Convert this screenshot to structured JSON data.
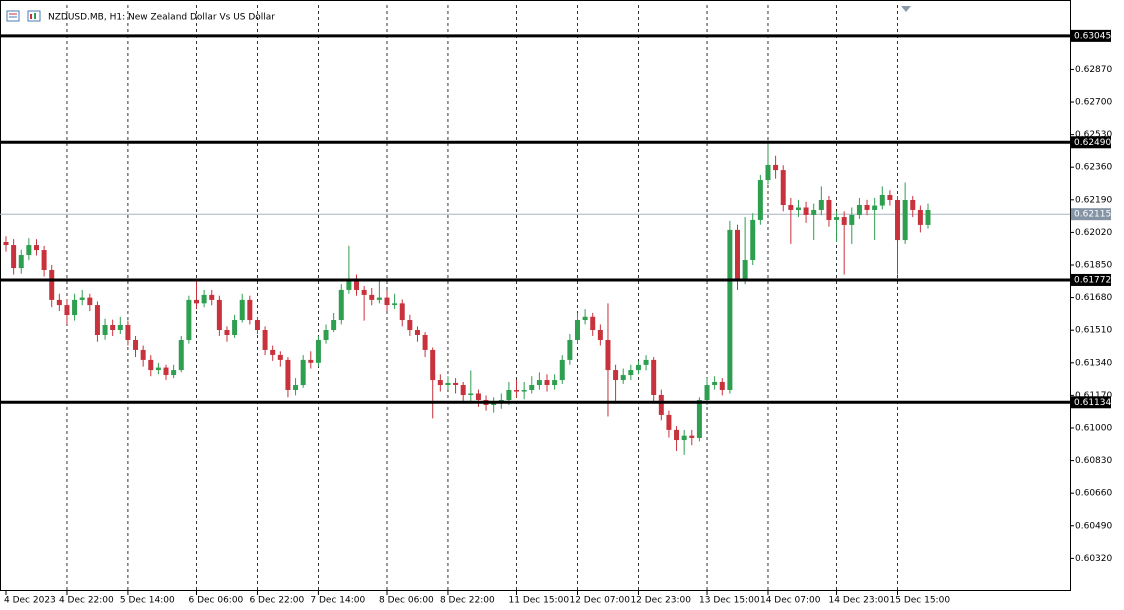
{
  "chart_data": {
    "type": "candlestick",
    "title": "NZDUSD.MB, H1:  New Zealand Dollar Vs US Dollar",
    "up_color": "#2e9e4f",
    "down_color": "#c8323c",
    "ylim": [
      0.60155,
      0.63206
    ],
    "yticks": [
      {
        "value": 0.6032,
        "label": "0.60320"
      },
      {
        "value": 0.6049,
        "label": "0.60490"
      },
      {
        "value": 0.6066,
        "label": "0.60660"
      },
      {
        "value": 0.6083,
        "label": "0.60830"
      },
      {
        "value": 0.61,
        "label": "0.61000"
      },
      {
        "value": 0.6117,
        "label": "0.61170"
      },
      {
        "value": 0.6134,
        "label": "0.61340"
      },
      {
        "value": 0.6151,
        "label": "0.61510"
      },
      {
        "value": 0.6168,
        "label": "0.61680"
      },
      {
        "value": 0.6185,
        "label": "0.61850"
      },
      {
        "value": 0.6202,
        "label": "0.62020"
      },
      {
        "value": 0.6219,
        "label": "0.62190"
      },
      {
        "value": 0.6236,
        "label": "0.62360"
      },
      {
        "value": 0.6253,
        "label": "0.62530"
      },
      {
        "value": 0.627,
        "label": "0.62700"
      },
      {
        "value": 0.6287,
        "label": "0.62870"
      }
    ],
    "levels": [
      0.63045,
      {
        "value": 0.6249,
        "label": "0.62490"
      },
      0.61772,
      0.61134
    ],
    "current_price": 0.62115,
    "xticks": [
      {
        "value": 0,
        "label": "4 Dec 2023"
      },
      {
        "value": 8,
        "label": "4 Dec 22:00"
      },
      {
        "value": 16,
        "label": "5 Dec 14:00"
      },
      {
        "value": 25,
        "label": "6 Dec 06:00"
      },
      {
        "value": 33,
        "label": "6 Dec 22:00"
      },
      {
        "value": 41,
        "label": "7 Dec 14:00"
      },
      {
        "value": 50,
        "label": "8 Dec 06:00"
      },
      {
        "value": 58,
        "label": "8 Dec 22:00"
      },
      {
        "value": 67,
        "label": "11 Dec 15:00"
      },
      {
        "value": 75,
        "label": "12 Dec 07:00"
      },
      {
        "value": 83,
        "label": "12 Dec 23:00"
      },
      {
        "value": 92,
        "label": "13 Dec 15:00"
      },
      {
        "value": 100,
        "label": "14 Dec 07:00"
      },
      {
        "value": 109,
        "label": "14 Dec 23:00"
      },
      {
        "value": 117,
        "label": "15 Dec 15:00"
      }
    ],
    "candles": [
      [
        0.6197,
        0.62,
        0.6192,
        0.61954
      ],
      [
        0.61954,
        0.61985,
        0.618,
        0.61834
      ],
      [
        0.61834,
        0.6193,
        0.61805,
        0.61902
      ],
      [
        0.61902,
        0.6199,
        0.61875,
        0.61954
      ],
      [
        0.61954,
        0.61985,
        0.619,
        0.61928
      ],
      [
        0.61928,
        0.6195,
        0.6179,
        0.61824
      ],
      [
        0.61824,
        0.6185,
        0.6163,
        0.61668
      ],
      [
        0.61668,
        0.617,
        0.6161,
        0.61641
      ],
      [
        0.61641,
        0.6167,
        0.6154,
        0.61589
      ],
      [
        0.61589,
        0.617,
        0.6156,
        0.61668
      ],
      [
        0.61668,
        0.6172,
        0.6164,
        0.6168
      ],
      [
        0.6168,
        0.617,
        0.6161,
        0.61641
      ],
      [
        0.61641,
        0.6166,
        0.6145,
        0.61485
      ],
      [
        0.61485,
        0.6157,
        0.6146,
        0.61537
      ],
      [
        0.61537,
        0.61565,
        0.6148,
        0.61511
      ],
      [
        0.61511,
        0.6158,
        0.6149,
        0.61537
      ],
      [
        0.61537,
        0.6156,
        0.6143,
        0.61459
      ],
      [
        0.61459,
        0.6148,
        0.6137,
        0.61407
      ],
      [
        0.61407,
        0.6143,
        0.6132,
        0.61355
      ],
      [
        0.61355,
        0.6138,
        0.6127,
        0.61302
      ],
      [
        0.61302,
        0.6134,
        0.6128,
        0.61315
      ],
      [
        0.61315,
        0.6133,
        0.6125,
        0.61276
      ],
      [
        0.61276,
        0.6133,
        0.6126,
        0.61302
      ],
      [
        0.61302,
        0.6148,
        0.6129,
        0.61459
      ],
      [
        0.61459,
        0.6169,
        0.6144,
        0.61668
      ],
      [
        0.61668,
        0.6177,
        0.6162,
        0.6165
      ],
      [
        0.6165,
        0.6172,
        0.6163,
        0.61694
      ],
      [
        0.61694,
        0.6172,
        0.6164,
        0.61668
      ],
      [
        0.61668,
        0.6169,
        0.6148,
        0.61511
      ],
      [
        0.61511,
        0.6153,
        0.6145,
        0.61485
      ],
      [
        0.61485,
        0.6159,
        0.6147,
        0.61563
      ],
      [
        0.61563,
        0.617,
        0.6155,
        0.61668
      ],
      [
        0.61668,
        0.6169,
        0.6154,
        0.61563
      ],
      [
        0.61563,
        0.6158,
        0.6149,
        0.61511
      ],
      [
        0.61511,
        0.6153,
        0.6138,
        0.61407
      ],
      [
        0.61407,
        0.6143,
        0.6135,
        0.61381
      ],
      [
        0.61381,
        0.614,
        0.6132,
        0.61355
      ],
      [
        0.61355,
        0.6137,
        0.6116,
        0.61198
      ],
      [
        0.61198,
        0.6126,
        0.6117,
        0.61224
      ],
      [
        0.61224,
        0.6138,
        0.6121,
        0.61355
      ],
      [
        0.61355,
        0.614,
        0.6131,
        0.6134
      ],
      [
        0.6134,
        0.6148,
        0.6132,
        0.61459
      ],
      [
        0.61459,
        0.6154,
        0.6144,
        0.61511
      ],
      [
        0.61511,
        0.616,
        0.615,
        0.61563
      ],
      [
        0.61563,
        0.6175,
        0.6154,
        0.6172
      ],
      [
        0.6172,
        0.6195,
        0.617,
        0.61772
      ],
      [
        0.61772,
        0.618,
        0.6169,
        0.6172
      ],
      [
        0.6172,
        0.6174,
        0.6156,
        0.61694
      ],
      [
        0.61694,
        0.6173,
        0.6164,
        0.61668
      ],
      [
        0.61668,
        0.6178,
        0.6165,
        0.6168
      ],
      [
        0.6168,
        0.6172,
        0.6161,
        0.61641
      ],
      [
        0.61641,
        0.617,
        0.6162,
        0.6165
      ],
      [
        0.6165,
        0.6167,
        0.6153,
        0.61563
      ],
      [
        0.61563,
        0.6159,
        0.6148,
        0.61511
      ],
      [
        0.61511,
        0.6153,
        0.6145,
        0.61485
      ],
      [
        0.61485,
        0.615,
        0.6137,
        0.61407
      ],
      [
        0.61407,
        0.6142,
        0.6105,
        0.6125
      ],
      [
        0.6125,
        0.6128,
        0.6119,
        0.61224
      ],
      [
        0.61224,
        0.6127,
        0.612,
        0.61235
      ],
      [
        0.61235,
        0.6126,
        0.6118,
        0.61224
      ],
      [
        0.61224,
        0.6124,
        0.6114,
        0.61172
      ],
      [
        0.61172,
        0.613,
        0.6114,
        0.6118
      ],
      [
        0.6118,
        0.612,
        0.6111,
        0.61146
      ],
      [
        0.61146,
        0.6117,
        0.6109,
        0.6112
      ],
      [
        0.6112,
        0.6116,
        0.6108,
        0.61135
      ],
      [
        0.61135,
        0.6118,
        0.611,
        0.61146
      ],
      [
        0.61146,
        0.6124,
        0.6112,
        0.61198
      ],
      [
        0.61198,
        0.6125,
        0.6116,
        0.6119
      ],
      [
        0.6119,
        0.6124,
        0.6115,
        0.61198
      ],
      [
        0.61198,
        0.6127,
        0.6118,
        0.61224
      ],
      [
        0.61224,
        0.6129,
        0.612,
        0.6125
      ],
      [
        0.6125,
        0.6128,
        0.6119,
        0.61224
      ],
      [
        0.61224,
        0.6128,
        0.612,
        0.6125
      ],
      [
        0.6125,
        0.6138,
        0.6123,
        0.61355
      ],
      [
        0.61355,
        0.6149,
        0.6133,
        0.61459
      ],
      [
        0.61459,
        0.616,
        0.6144,
        0.61563
      ],
      [
        0.61563,
        0.6162,
        0.6154,
        0.6158
      ],
      [
        0.6158,
        0.616,
        0.6148,
        0.61511
      ],
      [
        0.61511,
        0.6154,
        0.6143,
        0.61459
      ],
      [
        0.61459,
        0.6165,
        0.6106,
        0.61302
      ],
      [
        0.61302,
        0.6133,
        0.6114,
        0.6125
      ],
      [
        0.6125,
        0.6131,
        0.6123,
        0.61276
      ],
      [
        0.61276,
        0.6133,
        0.6125,
        0.61302
      ],
      [
        0.61302,
        0.6135,
        0.6128,
        0.61329
      ],
      [
        0.61329,
        0.6138,
        0.613,
        0.61355
      ],
      [
        0.61355,
        0.6137,
        0.6114,
        0.61172
      ],
      [
        0.61172,
        0.612,
        0.6104,
        0.61068
      ],
      [
        0.61068,
        0.6109,
        0.6095,
        0.6099
      ],
      [
        0.6099,
        0.6101,
        0.6088,
        0.60937
      ],
      [
        0.60937,
        0.6099,
        0.6086,
        0.6096
      ],
      [
        0.6096,
        0.6099,
        0.6091,
        0.60948
      ],
      [
        0.60948,
        0.6116,
        0.6093,
        0.61146
      ],
      [
        0.61146,
        0.6126,
        0.6112,
        0.61224
      ],
      [
        0.61224,
        0.6127,
        0.612,
        0.6124
      ],
      [
        0.6124,
        0.6126,
        0.6117,
        0.61198
      ],
      [
        0.61198,
        0.6208,
        0.6118,
        0.62033
      ],
      [
        0.62033,
        0.6206,
        0.6172,
        0.61772
      ],
      [
        0.61772,
        0.621,
        0.6175,
        0.61876
      ],
      [
        0.61876,
        0.6212,
        0.6185,
        0.62085
      ],
      [
        0.62085,
        0.6232,
        0.6206,
        0.62293
      ],
      [
        0.62293,
        0.625,
        0.6227,
        0.62372
      ],
      [
        0.62372,
        0.6242,
        0.623,
        0.62345
      ],
      [
        0.62345,
        0.6237,
        0.6213,
        0.62163
      ],
      [
        0.62163,
        0.622,
        0.6196,
        0.62137
      ],
      [
        0.62137,
        0.6219,
        0.621,
        0.6215
      ],
      [
        0.6215,
        0.6218,
        0.6207,
        0.62111
      ],
      [
        0.62111,
        0.6217,
        0.6198,
        0.62137
      ],
      [
        0.62137,
        0.6226,
        0.6211,
        0.62189
      ],
      [
        0.62189,
        0.6221,
        0.6205,
        0.62085
      ],
      [
        0.62085,
        0.6213,
        0.6197,
        0.621
      ],
      [
        0.621,
        0.6213,
        0.618,
        0.62059
      ],
      [
        0.62059,
        0.6215,
        0.6196,
        0.62111
      ],
      [
        0.62111,
        0.622,
        0.6209,
        0.62163
      ],
      [
        0.62163,
        0.6219,
        0.6211,
        0.62137
      ],
      [
        0.62137,
        0.622,
        0.6198,
        0.6216
      ],
      [
        0.6216,
        0.6226,
        0.6214,
        0.62215
      ],
      [
        0.62215,
        0.6224,
        0.6216,
        0.62189
      ],
      [
        0.62189,
        0.6221,
        0.618,
        0.6198
      ],
      [
        0.6198,
        0.6228,
        0.6196,
        0.62189
      ],
      [
        0.62189,
        0.6221,
        0.621,
        0.62137
      ],
      [
        0.62137,
        0.6216,
        0.6202,
        0.62059
      ],
      [
        0.62059,
        0.6217,
        0.6204,
        0.62137
      ]
    ]
  }
}
